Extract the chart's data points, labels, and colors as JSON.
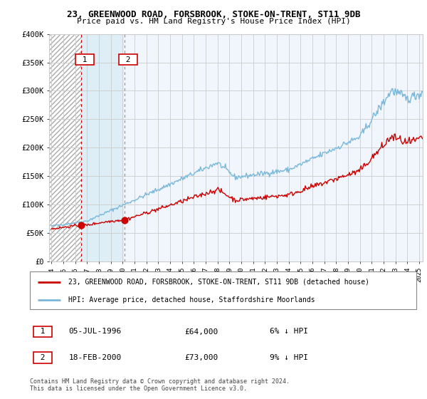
{
  "title_line1": "23, GREENWOOD ROAD, FORSBROOK, STOKE-ON-TRENT, ST11 9DB",
  "title_line2": "Price paid vs. HM Land Registry's House Price Index (HPI)",
  "ylim": [
    0,
    400000
  ],
  "yticks": [
    0,
    50000,
    100000,
    150000,
    200000,
    250000,
    300000,
    350000,
    400000
  ],
  "ytick_labels": [
    "£0",
    "£50K",
    "£100K",
    "£150K",
    "£200K",
    "£250K",
    "£300K",
    "£350K",
    "£400K"
  ],
  "hpi_color": "#7ab8d9",
  "price_color": "#cc0000",
  "sale1_date": 1996.51,
  "sale1_price": 64000,
  "sale2_date": 2000.13,
  "sale2_price": 73000,
  "legend_property": "23, GREENWOOD ROAD, FORSBROOK, STOKE-ON-TRENT, ST11 9DB (detached house)",
  "legend_hpi": "HPI: Average price, detached house, Staffordshire Moorlands",
  "annotation1_label": "1",
  "annotation1_date": "05-JUL-1996",
  "annotation1_price": "£64,000",
  "annotation1_hpi": "6% ↓ HPI",
  "annotation2_label": "2",
  "annotation2_date": "18-FEB-2000",
  "annotation2_price": "£73,000",
  "annotation2_hpi": "9% ↓ HPI",
  "footer": "Contains HM Land Registry data © Crown copyright and database right 2024.\nThis data is licensed under the Open Government Licence v3.0.",
  "bg_hatch_color": "#bbbbbb",
  "bg_blue_color": "#ddeef7",
  "bg_main_color": "#f0f6fc",
  "grid_color": "#cccccc",
  "start_year": 1994,
  "end_year": 2025
}
